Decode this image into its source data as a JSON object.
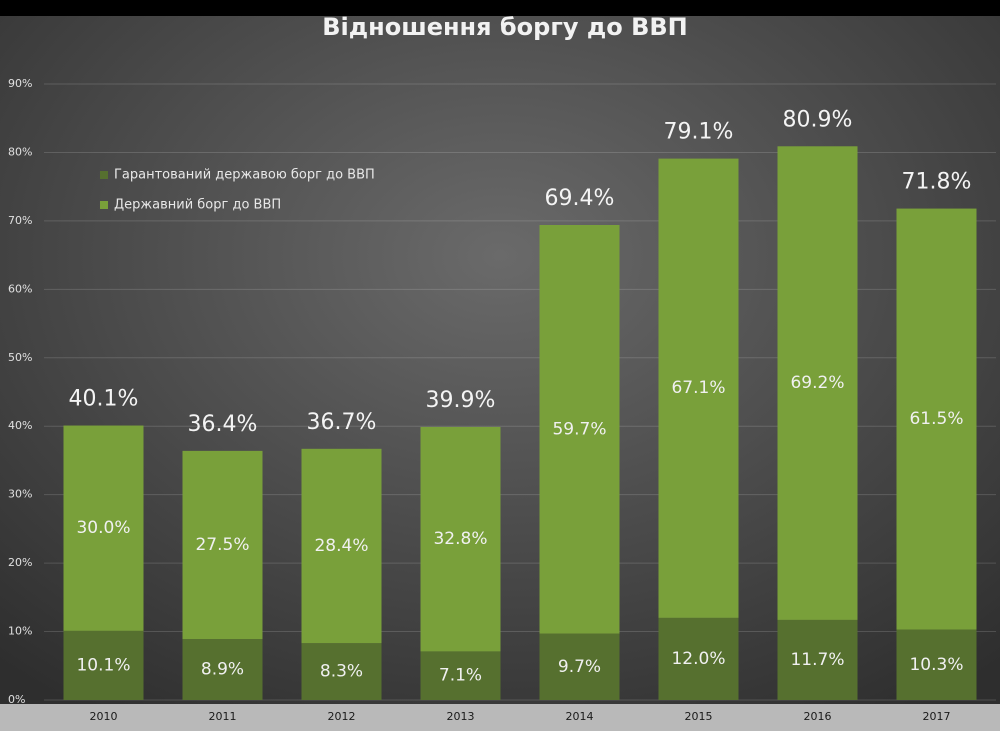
{
  "chart_data": {
    "type": "stacked-bar",
    "title": "Відношення  боргу до ВВП",
    "categories": [
      "2010",
      "2011",
      "2012",
      "2013",
      "2014",
      "2015",
      "2016",
      "2017"
    ],
    "series": [
      {
        "name": "Гарантований державою борг до ВВП",
        "color": "#56702f",
        "values": [
          10.1,
          8.9,
          8.3,
          7.1,
          9.7,
          12.0,
          11.7,
          10.3
        ],
        "value_labels": [
          "10.1%",
          "8.9%",
          "8.3%",
          "7.1%",
          "9.7%",
          "12.0%",
          "11.7%",
          "10.3%"
        ]
      },
      {
        "name": "Державний борг до ВВП",
        "color": "#79a03a",
        "values": [
          30.0,
          27.5,
          28.4,
          32.8,
          59.7,
          67.1,
          69.2,
          61.5
        ],
        "value_labels": [
          "30.0%",
          "27.5%",
          "28.4%",
          "32.8%",
          "59.7%",
          "67.1%",
          "69.2%",
          "61.5%"
        ]
      }
    ],
    "total_labels": [
      "40.1%",
      "36.4%",
      "36.7%",
      "39.9%",
      "69.4%",
      "79.1%",
      "80.9%",
      "71.8%"
    ],
    "ylim": [
      0,
      90
    ],
    "yticks": [
      {
        "value": 0,
        "label": "0%"
      },
      {
        "value": 10,
        "label": "10%"
      },
      {
        "value": 20,
        "label": "20%"
      },
      {
        "value": 30,
        "label": "30%"
      },
      {
        "value": 40,
        "label": "40%"
      },
      {
        "value": 50,
        "label": "50%"
      },
      {
        "value": 60,
        "label": "60%"
      },
      {
        "value": 70,
        "label": "70%"
      },
      {
        "value": 80,
        "label": "80%"
      },
      {
        "value": 90,
        "label": "90%"
      }
    ],
    "grid": true
  }
}
